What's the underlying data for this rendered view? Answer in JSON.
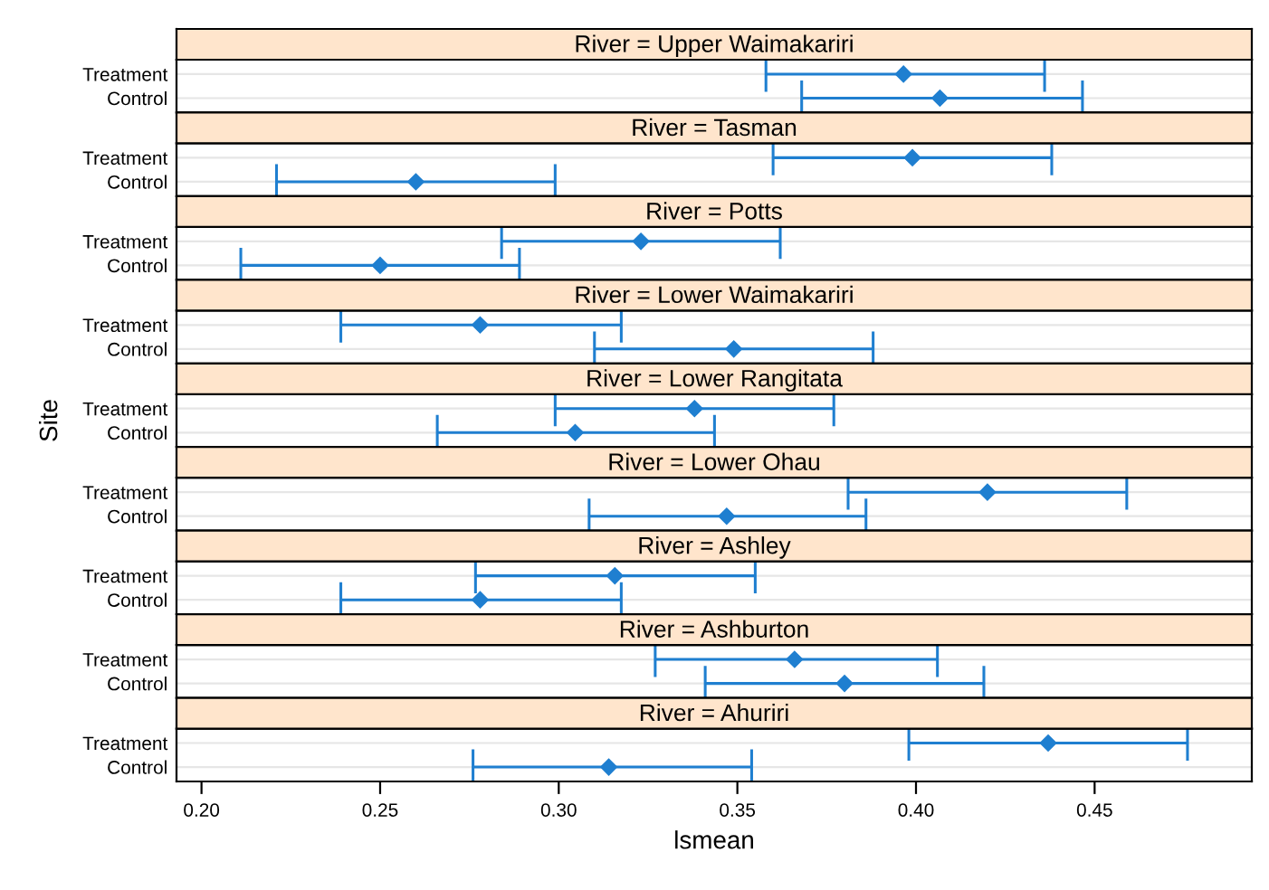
{
  "chart_data": [
    {
      "type": "scatter",
      "title": "River = Upper Waimakariri",
      "orientation": "horizontal",
      "categories": [
        "Treatment",
        "Control"
      ],
      "values": [
        0.3965,
        0.4067
      ],
      "errors": [
        [
          0.358,
          0.436
        ],
        [
          0.368,
          0.4466
        ]
      ],
      "color": "#1f7fd0",
      "marker": "diamond",
      "grid": "y",
      "xlim": [
        0.193,
        0.494
      ],
      "xticks": [
        0.2,
        0.25,
        0.3,
        0.35,
        0.4,
        0.45
      ],
      "tick_labels": "y"
    },
    {
      "type": "scatter",
      "title": "River = Tasman",
      "orientation": "horizontal",
      "categories": [
        "Treatment",
        "Control"
      ],
      "values": [
        0.399,
        0.26
      ],
      "errors": [
        [
          0.36,
          0.438
        ],
        [
          0.221,
          0.299
        ]
      ],
      "color": "#1f7fd0",
      "marker": "diamond",
      "grid": "y",
      "xlim": [
        0.193,
        0.494
      ],
      "xticks": [
        0.2,
        0.25,
        0.3,
        0.35,
        0.4,
        0.45
      ],
      "tick_labels": "y"
    },
    {
      "type": "scatter",
      "title": "River = Potts",
      "orientation": "horizontal",
      "categories": [
        "Treatment",
        "Control"
      ],
      "values": [
        0.323,
        0.25
      ],
      "errors": [
        [
          0.284,
          0.362
        ],
        [
          0.211,
          0.289
        ]
      ],
      "color": "#1f7fd0",
      "marker": "diamond",
      "grid": "y",
      "xlim": [
        0.193,
        0.494
      ],
      "xticks": [
        0.2,
        0.25,
        0.3,
        0.35,
        0.4,
        0.45
      ],
      "tick_labels": "y"
    },
    {
      "type": "scatter",
      "title": "River = Lower Waimakariri",
      "orientation": "horizontal",
      "categories": [
        "Treatment",
        "Control"
      ],
      "values": [
        0.278,
        0.349
      ],
      "errors": [
        [
          0.239,
          0.3175
        ],
        [
          0.31,
          0.388
        ]
      ],
      "color": "#1f7fd0",
      "marker": "diamond",
      "grid": "y",
      "xlim": [
        0.193,
        0.494
      ],
      "xticks": [
        0.2,
        0.25,
        0.3,
        0.35,
        0.4,
        0.45
      ],
      "tick_labels": "y"
    },
    {
      "type": "scatter",
      "title": "River = Lower Rangitata",
      "ylabel": "Site",
      "orientation": "horizontal",
      "categories": [
        "Treatment",
        "Control"
      ],
      "values": [
        0.338,
        0.3046
      ],
      "errors": [
        [
          0.299,
          0.377
        ],
        [
          0.266,
          0.3436
        ]
      ],
      "color": "#1f7fd0",
      "marker": "diamond",
      "grid": "y",
      "xlim": [
        0.193,
        0.494
      ],
      "xticks": [
        0.2,
        0.25,
        0.3,
        0.35,
        0.4,
        0.45
      ],
      "tick_labels": "y"
    },
    {
      "type": "scatter",
      "title": "River = Lower Ohau",
      "orientation": "horizontal",
      "categories": [
        "Treatment",
        "Control"
      ],
      "values": [
        0.42,
        0.347
      ],
      "errors": [
        [
          0.381,
          0.459
        ],
        [
          0.3085,
          0.386
        ]
      ],
      "color": "#1f7fd0",
      "marker": "diamond",
      "grid": "y",
      "xlim": [
        0.193,
        0.494
      ],
      "xticks": [
        0.2,
        0.25,
        0.3,
        0.35,
        0.4,
        0.45
      ],
      "tick_labels": "y"
    },
    {
      "type": "scatter",
      "title": "River = Ashley",
      "orientation": "horizontal",
      "categories": [
        "Treatment",
        "Control"
      ],
      "values": [
        0.3157,
        0.278
      ],
      "errors": [
        [
          0.2767,
          0.355
        ],
        [
          0.239,
          0.3175
        ]
      ],
      "color": "#1f7fd0",
      "marker": "diamond",
      "grid": "y",
      "xlim": [
        0.193,
        0.494
      ],
      "xticks": [
        0.2,
        0.25,
        0.3,
        0.35,
        0.4,
        0.45
      ],
      "tick_labels": "y"
    },
    {
      "type": "scatter",
      "title": "River = Ashburton",
      "orientation": "horizontal",
      "categories": [
        "Treatment",
        "Control"
      ],
      "values": [
        0.366,
        0.38
      ],
      "errors": [
        [
          0.327,
          0.406
        ],
        [
          0.341,
          0.419
        ]
      ],
      "color": "#1f7fd0",
      "marker": "diamond",
      "grid": "y",
      "xlim": [
        0.193,
        0.494
      ],
      "xticks": [
        0.2,
        0.25,
        0.3,
        0.35,
        0.4,
        0.45
      ],
      "tick_labels": "y"
    },
    {
      "type": "scatter",
      "title": "River = Ahuriri",
      "xlabel": "lsmean",
      "orientation": "horizontal",
      "categories": [
        "Treatment",
        "Control"
      ],
      "values": [
        0.437,
        0.314
      ],
      "errors": [
        [
          0.398,
          0.476
        ],
        [
          0.276,
          0.354
        ]
      ],
      "color": "#1f7fd0",
      "marker": "diamond",
      "grid": "y",
      "xlim": [
        0.193,
        0.494
      ],
      "xticks": [
        {
          "value": 0.2,
          "label": "0.20"
        },
        0.25,
        {
          "value": 0.3,
          "label": "0.30"
        },
        0.35,
        {
          "value": 0.4,
          "label": "0.40"
        },
        0.45
      ]
    }
  ]
}
